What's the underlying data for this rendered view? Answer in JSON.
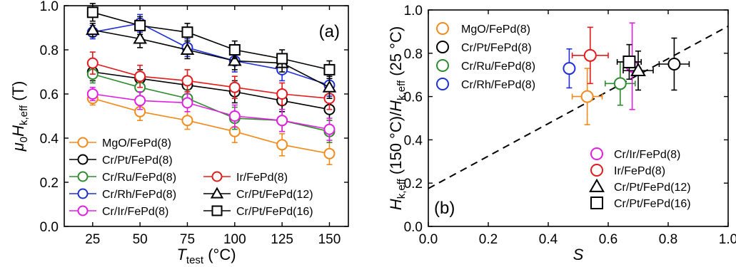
{
  "figure": {
    "panel_a_label": "(a)",
    "panel_b_label": "(b)"
  },
  "chart_data": [
    {
      "id": "a",
      "type": "line",
      "xlabel": "T_test (°C)",
      "ylabel": "μ0Hk,eff (T)",
      "xlim": [
        10,
        160
      ],
      "ylim": [
        0.0,
        1.0
      ],
      "xticks": [
        25,
        50,
        75,
        100,
        125,
        150
      ],
      "yticks": [
        0.0,
        0.2,
        0.4,
        0.6,
        0.8,
        1.0
      ],
      "x": [
        25,
        50,
        75,
        100,
        125,
        150
      ],
      "series": [
        {
          "name": "MgO/FePd(8)",
          "color": "#f28a1c",
          "marker": "circle",
          "values": [
            0.58,
            0.52,
            0.48,
            0.43,
            0.37,
            0.33
          ],
          "errors": [
            0.03,
            0.04,
            0.04,
            0.05,
            0.05,
            0.05
          ]
        },
        {
          "name": "Cr/Pt/FePd(8)",
          "color": "#000000",
          "marker": "circle",
          "values": [
            0.7,
            0.67,
            0.64,
            0.61,
            0.57,
            0.53
          ],
          "errors": [
            0.04,
            0.04,
            0.04,
            0.05,
            0.05,
            0.05
          ]
        },
        {
          "name": "Cr/Ru/FePd(8)",
          "color": "#2e8b2e",
          "marker": "circle",
          "values": [
            0.69,
            0.63,
            0.58,
            0.49,
            0.48,
            0.43
          ],
          "errors": [
            0.04,
            0.04,
            0.04,
            0.05,
            0.05,
            0.05
          ]
        },
        {
          "name": "Ir/FePd(8)",
          "color": "#e41a1c",
          "marker": "circle",
          "values": [
            0.74,
            0.68,
            0.66,
            0.63,
            0.6,
            0.58
          ],
          "errors": [
            0.05,
            0.05,
            0.05,
            0.05,
            0.05,
            0.05
          ]
        },
        {
          "name": "Cr/Rh/FePd(8)",
          "color": "#1f2fd6",
          "marker": "circle",
          "values": [
            0.88,
            0.92,
            0.81,
            0.75,
            0.71,
            0.64
          ],
          "errors": [
            0.03,
            0.04,
            0.04,
            0.05,
            0.05,
            0.05
          ]
        },
        {
          "name": "Cr/Pt/FePd(12)",
          "color": "#000000",
          "marker": "triangle",
          "values": [
            0.89,
            0.85,
            0.8,
            0.75,
            0.74,
            0.63
          ],
          "errors": [
            0.03,
            0.04,
            0.04,
            0.04,
            0.04,
            0.05
          ]
        },
        {
          "name": "Cr/Ir/FePd(8)",
          "color": "#e020e0",
          "marker": "circle",
          "values": [
            0.6,
            0.57,
            0.56,
            0.5,
            0.48,
            0.44
          ],
          "errors": [
            0.03,
            0.04,
            0.04,
            0.05,
            0.05,
            0.05
          ]
        },
        {
          "name": "Cr/Pt/FePd(16)",
          "color": "#000000",
          "marker": "square",
          "values": [
            0.97,
            0.91,
            0.88,
            0.8,
            0.76,
            0.71
          ],
          "errors": [
            0.04,
            0.04,
            0.04,
            0.04,
            0.04,
            0.04
          ]
        }
      ]
    },
    {
      "id": "b",
      "type": "scatter",
      "xlabel": "S",
      "ylabel": "Hk,eff (150 °C)/Hk,eff (25 °C)",
      "xlim": [
        0.0,
        1.0
      ],
      "ylim": [
        0.0,
        1.0
      ],
      "xticks": [
        0.0,
        0.2,
        0.4,
        0.6,
        0.8,
        1.0
      ],
      "yticks": [
        0.0,
        0.2,
        0.4,
        0.6,
        0.8,
        1.0
      ],
      "fit_line": {
        "x": [
          0.0,
          1.0
        ],
        "y": [
          0.175,
          0.925
        ],
        "style": "dashed"
      },
      "series": [
        {
          "name": "MgO/FePd(8)",
          "color": "#f28a1c",
          "marker": "circle",
          "x": 0.53,
          "y": 0.6,
          "xerr": 0.05,
          "yerr": 0.13
        },
        {
          "name": "Cr/Pt/FePd(8)",
          "color": "#000000",
          "marker": "circle",
          "x": 0.82,
          "y": 0.75,
          "xerr": 0.05,
          "yerr": 0.12
        },
        {
          "name": "Cr/Ru/FePd(8)",
          "color": "#2e8b2e",
          "marker": "circle",
          "x": 0.64,
          "y": 0.66,
          "xerr": 0.05,
          "yerr": 0.1
        },
        {
          "name": "Cr/Rh/FePd(8)",
          "color": "#1f2fd6",
          "marker": "circle",
          "x": 0.47,
          "y": 0.73,
          "xerr": 0.0,
          "yerr": 0.09
        },
        {
          "name": "Cr/Ir/FePd(8)",
          "color": "#e020e0",
          "marker": "circle",
          "x": 0.68,
          "y": 0.74,
          "xerr": 0.0,
          "yerr": 0.2
        },
        {
          "name": "Ir/FePd(8)",
          "color": "#e41a1c",
          "marker": "circle",
          "x": 0.54,
          "y": 0.79,
          "xerr": 0.06,
          "yerr": 0.13
        },
        {
          "name": "Cr/Pt/FePd(12)",
          "color": "#000000",
          "marker": "triangle",
          "x": 0.7,
          "y": 0.72,
          "xerr": 0.05,
          "yerr": 0.09
        },
        {
          "name": "Cr/Pt/FePd(16)",
          "color": "#000000",
          "marker": "square",
          "x": 0.67,
          "y": 0.76,
          "xerr": 0.04,
          "yerr": 0.08
        }
      ],
      "legend_top": [
        "MgO/FePd(8)",
        "Cr/Pt/FePd(8)",
        "Cr/Ru/FePd(8)",
        "Cr/Rh/FePd(8)"
      ],
      "legend_bottom": [
        "Cr/Ir/FePd(8)",
        "Ir/FePd(8)",
        "Cr/Pt/FePd(12)",
        "Cr/Pt/FePd(16)"
      ]
    }
  ]
}
